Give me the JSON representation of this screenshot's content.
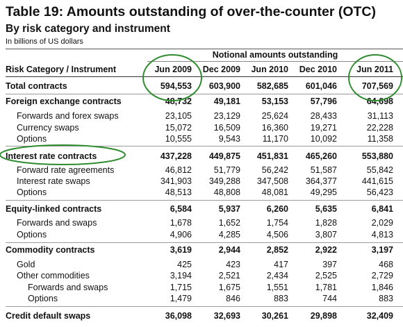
{
  "header": {
    "title": "Table 19: Amounts outstanding of over-the-counter (OTC)",
    "subtitle": "By risk category and instrument",
    "unit": "In billions of US dollars"
  },
  "table": {
    "group_header": "Notional amounts outstanding",
    "columns": [
      "Risk Category / Instrument",
      "Jun 2009",
      "Dec 2009",
      "Jun 2010",
      "Dec 2010",
      "Jun 2011"
    ],
    "rows": [
      [
        "Total contracts",
        "594,553",
        "603,900",
        "582,685",
        "601,046",
        "707,569"
      ],
      [
        "Foreign exchange contracts",
        "48,732",
        "49,181",
        "53,153",
        "57,796",
        "64,698"
      ],
      [
        "Forwards and forex swaps",
        "23,105",
        "23,129",
        "25,624",
        "28,433",
        "31,113"
      ],
      [
        "Currency swaps",
        "15,072",
        "16,509",
        "16,360",
        "19,271",
        "22,228"
      ],
      [
        "Options",
        "10,555",
        "9,543",
        "11,170",
        "10,092",
        "11,358"
      ],
      [
        "Interest rate contracts",
        "437,228",
        "449,875",
        "451,831",
        "465,260",
        "553,880"
      ],
      [
        "Forward rate agreements",
        "46,812",
        "51,779",
        "56,242",
        "51,587",
        "55,842"
      ],
      [
        "Interest rate swaps",
        "341,903",
        "349,288",
        "347,508",
        "364,377",
        "441,615"
      ],
      [
        "Options",
        "48,513",
        "48,808",
        "48,081",
        "49,295",
        "56,423"
      ],
      [
        "Equity-linked contracts",
        "6,584",
        "5,937",
        "6,260",
        "5,635",
        "6,841"
      ],
      [
        "Forwards and swaps",
        "1,678",
        "1,652",
        "1,754",
        "1,828",
        "2,029"
      ],
      [
        "Options",
        "4,906",
        "4,285",
        "4,506",
        "3,807",
        "4,813"
      ],
      [
        "Commodity contracts",
        "3,619",
        "2,944",
        "2,852",
        "2,922",
        "3,197"
      ],
      [
        "Gold",
        "425",
        "423",
        "417",
        "397",
        "468"
      ],
      [
        "Other commodities",
        "3,194",
        "2,521",
        "2,434",
        "2,525",
        "2,729"
      ],
      [
        "Forwards and swaps",
        "1,715",
        "1,675",
        "1,551",
        "1,781",
        "1,846"
      ],
      [
        "Options",
        "1,479",
        "846",
        "883",
        "744",
        "883"
      ],
      [
        "Credit default swaps",
        "36,098",
        "32,693",
        "30,261",
        "29,898",
        "32,409"
      ]
    ]
  }
}
